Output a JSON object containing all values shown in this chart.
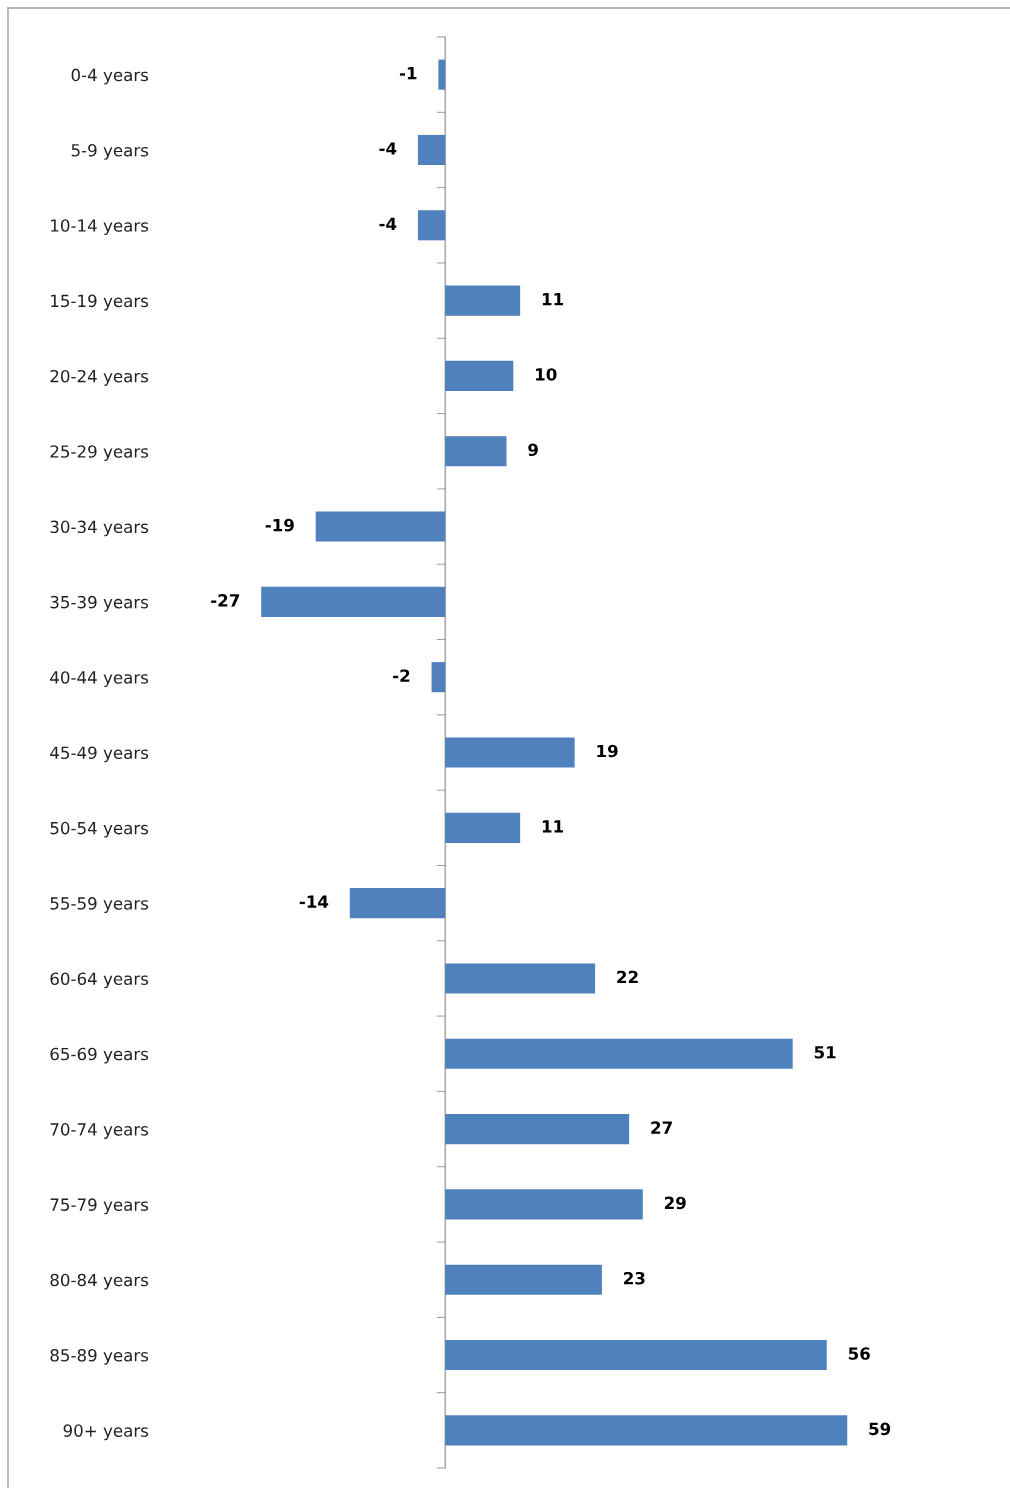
{
  "chart_data": {
    "type": "bar",
    "orientation": "horizontal",
    "data_labels": true,
    "grid": false,
    "legend": false,
    "categories": [
      "0-4 years",
      "5-9 years",
      "10-14 years",
      "15-19 years",
      "20-24 years",
      "25-29 years",
      "30-34 years",
      "35-39 years",
      "40-44 years",
      "45-49 years",
      "50-54 years",
      "55-59 years",
      "60-64 years",
      "65-69 years",
      "70-74 years",
      "75-79 years",
      "80-84 years",
      "85-89 years",
      "90+ years"
    ],
    "values": [
      -1,
      -4,
      -4,
      11,
      10,
      9,
      -19,
      -27,
      -2,
      19,
      11,
      -14,
      22,
      51,
      27,
      29,
      23,
      56,
      59
    ],
    "color": "#4f81bd"
  }
}
